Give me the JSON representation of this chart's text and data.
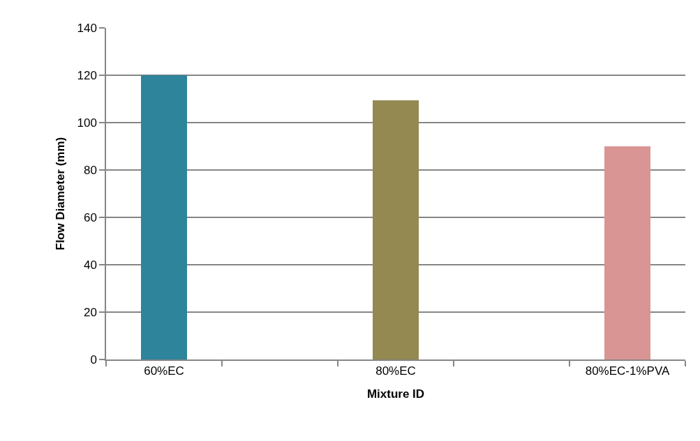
{
  "chart_data": {
    "type": "bar",
    "xlabel": "Mixture ID",
    "ylabel": "Flow Diameter (mm)",
    "categories": [
      "60%EC",
      null,
      "80%EC",
      null,
      "80%EC-1%PVA"
    ],
    "values": [
      120,
      null,
      109.5,
      null,
      90
    ],
    "colors": [
      "#2e849b",
      null,
      "#938951",
      null,
      "#d99594"
    ],
    "ylim": [
      0,
      140
    ],
    "yticks": [
      0,
      20,
      40,
      60,
      80,
      100,
      120,
      140
    ],
    "grid": "y"
  }
}
